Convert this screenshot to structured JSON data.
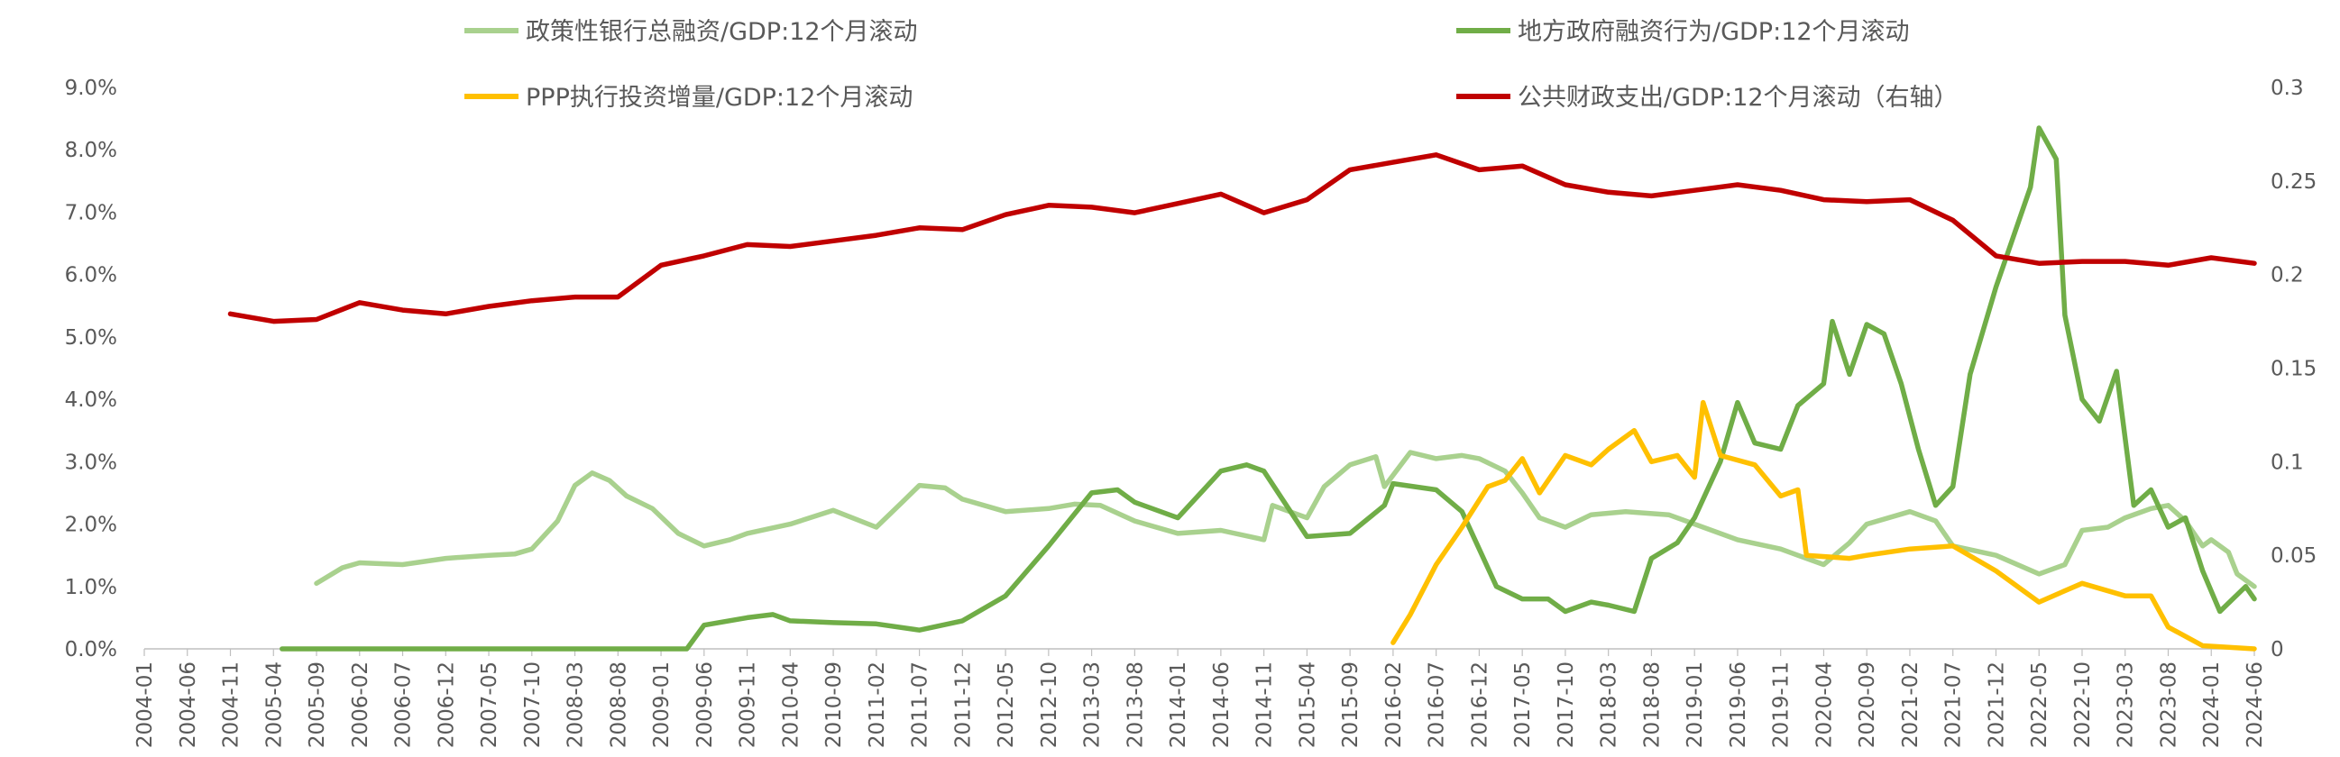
{
  "chart_data": {
    "type": "line",
    "title": "",
    "xlabel": "",
    "ylabel": "",
    "x_categories": [
      "2004-01",
      "2004-06",
      "2004-11",
      "2005-04",
      "2005-09",
      "2006-02",
      "2006-07",
      "2006-12",
      "2007-05",
      "2007-10",
      "2008-03",
      "2008-08",
      "2009-01",
      "2009-06",
      "2009-11",
      "2010-04",
      "2010-09",
      "2011-02",
      "2011-07",
      "2011-12",
      "2012-05",
      "2012-10",
      "2013-03",
      "2013-08",
      "2014-01",
      "2014-06",
      "2014-11",
      "2015-04",
      "2015-09",
      "2016-02",
      "2016-07",
      "2016-12",
      "2017-05",
      "2017-10",
      "2018-03",
      "2018-08",
      "2019-01",
      "2019-06",
      "2019-11",
      "2020-04",
      "2020-09",
      "2021-02",
      "2021-07",
      "2021-12",
      "2022-05",
      "2022-10",
      "2023-03",
      "2023-08",
      "2024-01",
      "2024-06"
    ],
    "left_axis": {
      "ylim": [
        0,
        9.0
      ],
      "ticks": [
        "0.0%",
        "1.0%",
        "2.0%",
        "3.0%",
        "4.0%",
        "5.0%",
        "6.0%",
        "7.0%",
        "8.0%",
        "9.0%"
      ]
    },
    "right_axis": {
      "ylim": [
        0,
        0.3
      ],
      "ticks": [
        "0",
        "0.05",
        "0.1",
        "0.15",
        "0.2",
        "0.25",
        "0.3"
      ]
    },
    "grid": false,
    "legend_position": "top",
    "series": [
      {
        "name": "政策性银行总融资/GDP:12个月滚动",
        "color": "#A9D18E",
        "axis": "left",
        "points": [
          [
            "2005-09",
            1.05
          ],
          [
            "2005-12",
            1.3
          ],
          [
            "2006-02",
            1.38
          ],
          [
            "2006-07",
            1.35
          ],
          [
            "2006-12",
            1.45
          ],
          [
            "2007-05",
            1.5
          ],
          [
            "2007-08",
            1.52
          ],
          [
            "2007-10",
            1.6
          ],
          [
            "2008-01",
            2.05
          ],
          [
            "2008-03",
            2.62
          ],
          [
            "2008-05",
            2.82
          ],
          [
            "2008-07",
            2.7
          ],
          [
            "2008-09",
            2.45
          ],
          [
            "2008-12",
            2.25
          ],
          [
            "2009-03",
            1.85
          ],
          [
            "2009-06",
            1.65
          ],
          [
            "2009-09",
            1.75
          ],
          [
            "2009-11",
            1.85
          ],
          [
            "2010-04",
            2.0
          ],
          [
            "2010-09",
            2.22
          ],
          [
            "2011-02",
            1.95
          ],
          [
            "2011-05",
            2.35
          ],
          [
            "2011-07",
            2.62
          ],
          [
            "2011-10",
            2.58
          ],
          [
            "2011-12",
            2.4
          ],
          [
            "2012-05",
            2.2
          ],
          [
            "2012-10",
            2.25
          ],
          [
            "2013-01",
            2.32
          ],
          [
            "2013-04",
            2.3
          ],
          [
            "2013-08",
            2.05
          ],
          [
            "2014-01",
            1.85
          ],
          [
            "2014-06",
            1.9
          ],
          [
            "2014-11",
            1.75
          ],
          [
            "2014-12",
            2.3
          ],
          [
            "2015-04",
            2.1
          ],
          [
            "2015-06",
            2.6
          ],
          [
            "2015-09",
            2.95
          ],
          [
            "2015-12",
            3.08
          ],
          [
            "2016-01",
            2.6
          ],
          [
            "2016-04",
            3.15
          ],
          [
            "2016-07",
            3.05
          ],
          [
            "2016-10",
            3.1
          ],
          [
            "2016-12",
            3.05
          ],
          [
            "2017-03",
            2.85
          ],
          [
            "2017-05",
            2.5
          ],
          [
            "2017-07",
            2.1
          ],
          [
            "2017-10",
            1.95
          ],
          [
            "2018-01",
            2.15
          ],
          [
            "2018-05",
            2.2
          ],
          [
            "2018-10",
            2.15
          ],
          [
            "2019-01",
            2.0
          ],
          [
            "2019-06",
            1.75
          ],
          [
            "2019-11",
            1.6
          ],
          [
            "2020-01",
            1.5
          ],
          [
            "2020-04",
            1.35
          ],
          [
            "2020-07",
            1.7
          ],
          [
            "2020-09",
            2.0
          ],
          [
            "2021-02",
            2.2
          ],
          [
            "2021-05",
            2.05
          ],
          [
            "2021-07",
            1.65
          ],
          [
            "2021-12",
            1.5
          ],
          [
            "2022-05",
            1.2
          ],
          [
            "2022-08",
            1.35
          ],
          [
            "2022-10",
            1.9
          ],
          [
            "2023-01",
            1.95
          ],
          [
            "2023-03",
            2.1
          ],
          [
            "2023-06",
            2.25
          ],
          [
            "2023-08",
            2.3
          ],
          [
            "2023-10",
            2.05
          ],
          [
            "2023-12",
            1.65
          ],
          [
            "2024-01",
            1.75
          ],
          [
            "2024-03",
            1.55
          ],
          [
            "2024-04",
            1.2
          ],
          [
            "2024-06",
            1.0
          ]
        ]
      },
      {
        "name": "地方政府融资行为/GDP:12个月滚动",
        "color": "#70AD47",
        "axis": "left",
        "points": [
          [
            "2005-05",
            0.0
          ],
          [
            "2009-04",
            0.0
          ],
          [
            "2009-06",
            0.38
          ],
          [
            "2009-11",
            0.5
          ],
          [
            "2010-02",
            0.55
          ],
          [
            "2010-04",
            0.45
          ],
          [
            "2010-09",
            0.42
          ],
          [
            "2011-02",
            0.4
          ],
          [
            "2011-07",
            0.3
          ],
          [
            "2011-12",
            0.45
          ],
          [
            "2012-05",
            0.85
          ],
          [
            "2012-10",
            1.65
          ],
          [
            "2013-03",
            2.5
          ],
          [
            "2013-06",
            2.55
          ],
          [
            "2013-08",
            2.35
          ],
          [
            "2014-01",
            2.1
          ],
          [
            "2014-04",
            2.55
          ],
          [
            "2014-06",
            2.85
          ],
          [
            "2014-09",
            2.95
          ],
          [
            "2014-11",
            2.85
          ],
          [
            "2015-04",
            1.8
          ],
          [
            "2015-09",
            1.85
          ],
          [
            "2016-01",
            2.3
          ],
          [
            "2016-02",
            2.65
          ],
          [
            "2016-07",
            2.55
          ],
          [
            "2016-10",
            2.2
          ],
          [
            "2016-12",
            1.6
          ],
          [
            "2017-02",
            1.0
          ],
          [
            "2017-05",
            0.8
          ],
          [
            "2017-08",
            0.8
          ],
          [
            "2017-10",
            0.6
          ],
          [
            "2018-01",
            0.75
          ],
          [
            "2018-03",
            0.7
          ],
          [
            "2018-06",
            0.6
          ],
          [
            "2018-08",
            1.45
          ],
          [
            "2018-11",
            1.7
          ],
          [
            "2019-01",
            2.1
          ],
          [
            "2019-04",
            3.0
          ],
          [
            "2019-06",
            3.95
          ],
          [
            "2019-08",
            3.3
          ],
          [
            "2019-11",
            3.2
          ],
          [
            "2020-01",
            3.9
          ],
          [
            "2020-04",
            4.25
          ],
          [
            "2020-05",
            5.25
          ],
          [
            "2020-07",
            4.4
          ],
          [
            "2020-09",
            5.2
          ],
          [
            "2020-11",
            5.05
          ],
          [
            "2021-01",
            4.25
          ],
          [
            "2021-03",
            3.2
          ],
          [
            "2021-05",
            2.3
          ],
          [
            "2021-07",
            2.6
          ],
          [
            "2021-09",
            4.4
          ],
          [
            "2021-12",
            5.8
          ],
          [
            "2022-02",
            6.6
          ],
          [
            "2022-04",
            7.4
          ],
          [
            "2022-05",
            8.35
          ],
          [
            "2022-07",
            7.85
          ],
          [
            "2022-08",
            5.35
          ],
          [
            "2022-10",
            4.0
          ],
          [
            "2022-12",
            3.65
          ],
          [
            "2023-02",
            4.45
          ],
          [
            "2023-04",
            2.3
          ],
          [
            "2023-06",
            2.55
          ],
          [
            "2023-08",
            1.95
          ],
          [
            "2023-10",
            2.1
          ],
          [
            "2023-12",
            1.25
          ],
          [
            "2024-02",
            0.6
          ],
          [
            "2024-05",
            1.0
          ],
          [
            "2024-06",
            0.8
          ]
        ]
      },
      {
        "name": "PPP执行投资增量/GDP:12个月滚动",
        "color": "#FFC000",
        "axis": "left",
        "points": [
          [
            "2016-02",
            0.1
          ],
          [
            "2016-04",
            0.55
          ],
          [
            "2016-07",
            1.35
          ],
          [
            "2016-10",
            1.95
          ],
          [
            "2017-01",
            2.6
          ],
          [
            "2017-03",
            2.7
          ],
          [
            "2017-05",
            3.05
          ],
          [
            "2017-07",
            2.5
          ],
          [
            "2017-10",
            3.1
          ],
          [
            "2018-01",
            2.95
          ],
          [
            "2018-03",
            3.2
          ],
          [
            "2018-06",
            3.5
          ],
          [
            "2018-08",
            3.0
          ],
          [
            "2018-11",
            3.1
          ],
          [
            "2019-01",
            2.75
          ],
          [
            "2019-02",
            3.95
          ],
          [
            "2019-04",
            3.1
          ],
          [
            "2019-08",
            2.95
          ],
          [
            "2019-11",
            2.45
          ],
          [
            "2020-01",
            2.55
          ],
          [
            "2020-02",
            1.5
          ],
          [
            "2020-07",
            1.45
          ],
          [
            "2020-09",
            1.5
          ],
          [
            "2021-02",
            1.6
          ],
          [
            "2021-07",
            1.65
          ],
          [
            "2021-12",
            1.25
          ],
          [
            "2022-05",
            0.75
          ],
          [
            "2022-10",
            1.05
          ],
          [
            "2023-03",
            0.85
          ],
          [
            "2023-06",
            0.85
          ],
          [
            "2023-08",
            0.35
          ],
          [
            "2023-12",
            0.05
          ],
          [
            "2024-06",
            0.0
          ]
        ]
      },
      {
        "name": "公共财政支出/GDP:12个月滚动（右轴）",
        "color": "#C00000",
        "axis": "right",
        "points": [
          [
            "2004-11",
            0.179
          ],
          [
            "2005-04",
            0.175
          ],
          [
            "2005-09",
            0.176
          ],
          [
            "2006-02",
            0.185
          ],
          [
            "2006-07",
            0.181
          ],
          [
            "2006-12",
            0.179
          ],
          [
            "2007-05",
            0.183
          ],
          [
            "2007-10",
            0.186
          ],
          [
            "2008-03",
            0.188
          ],
          [
            "2008-08",
            0.188
          ],
          [
            "2009-01",
            0.205
          ],
          [
            "2009-06",
            0.21
          ],
          [
            "2009-11",
            0.216
          ],
          [
            "2010-04",
            0.215
          ],
          [
            "2010-09",
            0.218
          ],
          [
            "2011-02",
            0.221
          ],
          [
            "2011-07",
            0.225
          ],
          [
            "2011-12",
            0.224
          ],
          [
            "2012-05",
            0.232
          ],
          [
            "2012-10",
            0.237
          ],
          [
            "2013-03",
            0.236
          ],
          [
            "2013-08",
            0.233
          ],
          [
            "2014-01",
            0.238
          ],
          [
            "2014-06",
            0.243
          ],
          [
            "2014-11",
            0.233
          ],
          [
            "2015-04",
            0.24
          ],
          [
            "2015-09",
            0.256
          ],
          [
            "2016-02",
            0.26
          ],
          [
            "2016-07",
            0.264
          ],
          [
            "2016-12",
            0.256
          ],
          [
            "2017-05",
            0.258
          ],
          [
            "2017-10",
            0.248
          ],
          [
            "2018-03",
            0.244
          ],
          [
            "2018-08",
            0.242
          ],
          [
            "2019-01",
            0.245
          ],
          [
            "2019-06",
            0.248
          ],
          [
            "2019-11",
            0.245
          ],
          [
            "2020-04",
            0.24
          ],
          [
            "2020-09",
            0.239
          ],
          [
            "2021-02",
            0.24
          ],
          [
            "2021-07",
            0.229
          ],
          [
            "2021-12",
            0.21
          ],
          [
            "2022-05",
            0.206
          ],
          [
            "2022-10",
            0.207
          ],
          [
            "2023-03",
            0.207
          ],
          [
            "2023-08",
            0.205
          ],
          [
            "2024-01",
            0.209
          ],
          [
            "2024-06",
            0.206
          ]
        ]
      }
    ]
  }
}
